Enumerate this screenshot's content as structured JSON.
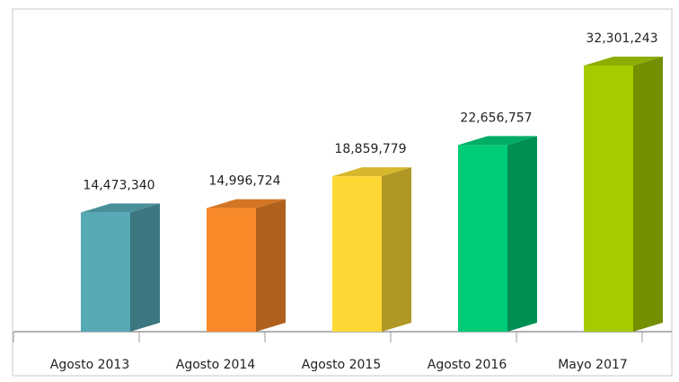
{
  "chart_data": {
    "type": "bar3d",
    "categories": [
      "Agosto 2013",
      "Agosto 2014",
      "Agosto 2015",
      "Agosto 2016",
      "Mayo 2017"
    ],
    "values": [
      14473340,
      14996724,
      18859779,
      22656757,
      32301243
    ],
    "value_labels": [
      "14,473,340",
      "14,996,724",
      "18,859,779",
      "22,656,757",
      "32,301,243"
    ],
    "colors": [
      "#56a9b5",
      "#f98a2a",
      "#fdd835",
      "#00cc77",
      "#a6cc00"
    ]
  }
}
